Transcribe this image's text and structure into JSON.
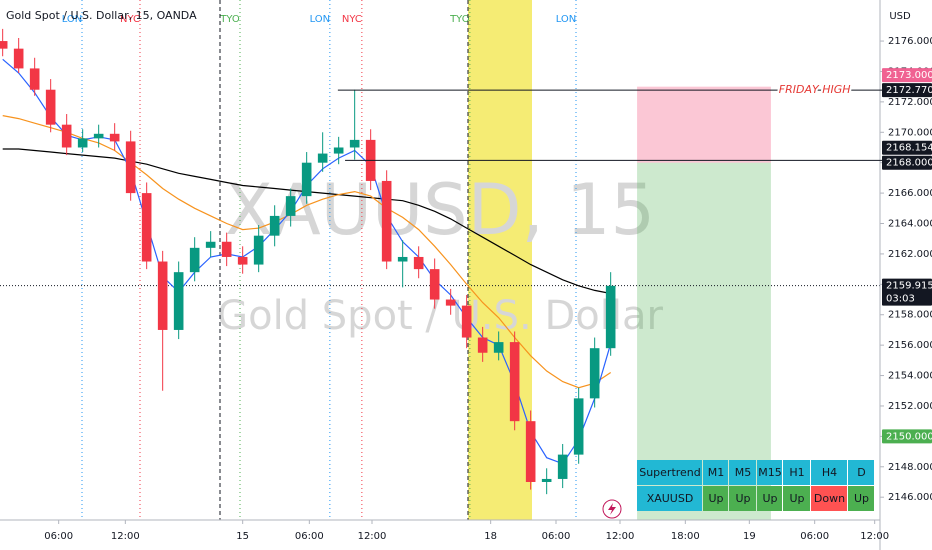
{
  "chart_data": {
    "type": "candlestick",
    "title": "Gold Spot / U.S. Dollar, 15, OANDA",
    "currency": "USD",
    "watermark": [
      "XAUUSD, 15",
      "Gold Spot / U.S. Dollar"
    ],
    "xlim": [
      0,
      330
    ],
    "ylim": [
      2144.5,
      2178.7
    ],
    "up_color": "#089981",
    "down_color": "#f23645",
    "yticks": [
      {
        "value": 2146,
        "label": "2146.000"
      },
      {
        "value": 2148,
        "label": "2148.000"
      },
      {
        "value": 2150,
        "label": "2150.000"
      },
      {
        "value": 2152,
        "label": "2152.000"
      },
      {
        "value": 2154,
        "label": "2154.000"
      },
      {
        "value": 2156,
        "label": "2156.000"
      },
      {
        "value": 2158,
        "label": "2158.000"
      },
      {
        "value": 2160,
        "label": "2160.000"
      },
      {
        "value": 2162,
        "label": "2162.000"
      },
      {
        "value": 2164,
        "label": "2164.000"
      },
      {
        "value": 2166,
        "label": "2166.000"
      },
      {
        "value": 2168,
        "label": "2168.000"
      },
      {
        "value": 2170,
        "label": "2170.000"
      },
      {
        "value": 2172,
        "label": "2172.000"
      },
      {
        "value": 2174,
        "label": "2174.000"
      },
      {
        "value": 2176,
        "label": "2176.000"
      }
    ],
    "xticks": [
      {
        "value": 22,
        "label": "06:00"
      },
      {
        "value": 47,
        "label": "12:00"
      },
      {
        "value": 91,
        "label": "15"
      },
      {
        "value": 116,
        "label": "06:00"
      },
      {
        "value": 139.5,
        "label": "12:00"
      },
      {
        "value": 184,
        "label": "18"
      },
      {
        "value": 208.5,
        "label": "06:00"
      },
      {
        "value": 232.5,
        "label": "12:00"
      },
      {
        "value": 257,
        "label": "18:00"
      },
      {
        "value": 281,
        "label": "19"
      },
      {
        "value": 305.5,
        "label": "06:00"
      },
      {
        "value": 328,
        "label": "12:00"
      }
    ],
    "x": [
      1,
      7,
      13,
      19,
      25,
      31,
      37,
      43,
      49,
      55,
      61,
      67,
      73,
      79,
      85,
      91,
      97,
      103,
      109,
      115,
      121,
      127,
      133,
      139,
      145,
      151,
      157,
      163,
      169,
      175,
      181,
      187,
      193,
      199,
      205,
      211,
      217,
      223,
      229
    ],
    "open": [
      2176.0,
      2175.5,
      2174.2,
      2172.8,
      2170.5,
      2169.0,
      2169.6,
      2169.9,
      2169.4,
      2166.0,
      2161.5,
      2157.0,
      2160.8,
      2162.4,
      2162.8,
      2161.8,
      2161.3,
      2163.2,
      2164.5,
      2165.8,
      2168.0,
      2168.6,
      2169.0,
      2169.5,
      2166.8,
      2161.5,
      2161.8,
      2161.0,
      2159.0,
      2158.6,
      2156.5,
      2155.5,
      2156.2,
      2151.0,
      2147.0,
      2147.2,
      2148.8,
      2152.5,
      2155.8
    ],
    "high": [
      2176.8,
      2176.2,
      2174.9,
      2173.5,
      2171.2,
      2170.2,
      2170.5,
      2170.6,
      2170.1,
      2166.7,
      2162.2,
      2161.5,
      2163.1,
      2163.5,
      2163.4,
      2162.5,
      2163.9,
      2165.2,
      2166.3,
      2168.7,
      2170.0,
      2169.7,
      2172.8,
      2170.2,
      2167.5,
      2162.9,
      2162.5,
      2161.7,
      2159.7,
      2159.3,
      2157.2,
      2156.9,
      2156.9,
      2151.7,
      2147.9,
      2149.5,
      2153.2,
      2156.5,
      2160.8
    ],
    "low": [
      2175.0,
      2173.9,
      2172.4,
      2170.0,
      2168.5,
      2168.7,
      2169.0,
      2168.8,
      2165.5,
      2161.0,
      2153.0,
      2156.4,
      2160.2,
      2161.8,
      2161.2,
      2160.7,
      2160.8,
      2162.5,
      2163.8,
      2165.3,
      2167.4,
      2167.9,
      2168.2,
      2166.2,
      2161.0,
      2159.8,
      2160.4,
      2158.4,
      2158.0,
      2155.8,
      2154.9,
      2155.0,
      2150.4,
      2146.5,
      2146.2,
      2146.6,
      2148.2,
      2151.9,
      2155.3
    ],
    "close": [
      2175.5,
      2174.2,
      2172.8,
      2170.5,
      2169.0,
      2169.6,
      2169.9,
      2169.4,
      2166.0,
      2161.5,
      2157.0,
      2160.8,
      2162.4,
      2162.8,
      2161.8,
      2161.3,
      2163.2,
      2164.5,
      2165.8,
      2168.0,
      2168.6,
      2169.0,
      2169.5,
      2166.8,
      2161.5,
      2161.8,
      2161.0,
      2159.0,
      2158.6,
      2156.5,
      2155.5,
      2156.2,
      2151.0,
      2147.0,
      2147.2,
      2148.8,
      2152.5,
      2155.8,
      2159.9
    ],
    "lines": [
      {
        "color": "#000000",
        "values": [
          2168.9,
          2168.9,
          2168.8,
          2168.7,
          2168.6,
          2168.5,
          2168.4,
          2168.3,
          2168.1,
          2167.9,
          2167.6,
          2167.3,
          2167.1,
          2166.9,
          2166.7,
          2166.5,
          2166.4,
          2166.3,
          2166.2,
          2166.1,
          2166.0,
          2165.9,
          2165.8,
          2165.7,
          2165.6,
          2165.5,
          2165.2,
          2164.8,
          2164.3,
          2163.7,
          2163.1,
          2162.5,
          2161.9,
          2161.3,
          2160.8,
          2160.3,
          2159.9,
          2159.6,
          2159.4
        ]
      },
      {
        "color": "#f7931e",
        "values": [
          2171.1,
          2170.9,
          2170.6,
          2170.3,
          2170.0,
          2169.6,
          2169.3,
          2168.8,
          2168.0,
          2167.2,
          2166.3,
          2165.6,
          2165.0,
          2164.5,
          2164.0,
          2163.6,
          2163.7,
          2164.1,
          2164.6,
          2165.2,
          2165.6,
          2165.9,
          2166.1,
          2165.8,
          2165.0,
          2164.4,
          2163.6,
          2162.5,
          2161.3,
          2160.0,
          2158.8,
          2157.8,
          2156.5,
          2155.3,
          2154.3,
          2153.6,
          2153.2,
          2153.5,
          2154.2
        ]
      },
      {
        "color": "#2962ff",
        "values": [
          2174.8,
          2173.9,
          2172.6,
          2171.0,
          2169.8,
          2169.5,
          2169.7,
          2169.5,
          2167.5,
          2164.0,
          2160.5,
          2159.5,
          2160.8,
          2161.8,
          2162.0,
          2161.8,
          2162.5,
          2163.6,
          2164.8,
          2166.5,
          2167.6,
          2168.3,
          2168.8,
          2167.8,
          2164.5,
          2162.8,
          2161.8,
          2160.3,
          2159.3,
          2157.8,
          2156.5,
          2156.0,
          2153.5,
          2150.3,
          2148.6,
          2148.2,
          2149.8,
          2152.5,
          2156.1
        ]
      }
    ],
    "sessions": [
      {
        "label": "LON",
        "x": 30.75,
        "color": "#2196f3"
      },
      {
        "label": "NYC",
        "x": 52.5,
        "color": "#f23645"
      },
      {
        "label": "TYO",
        "x": 90,
        "color": "#4caf50"
      },
      {
        "label": "LON",
        "x": 123.7,
        "color": "#2196f3"
      },
      {
        "label": "NYC",
        "x": 135.7,
        "color": "#f23645"
      },
      {
        "label": "TYO",
        "x": 176.2,
        "color": "#4caf50"
      },
      {
        "label": "LON",
        "x": 216,
        "color": "#2196f3"
      }
    ],
    "day_breaks": [
      82.5,
      175.5
    ],
    "highlight": {
      "x": [
        175.5,
        199.5
      ],
      "color": "#f5ec74"
    },
    "hlines": [
      {
        "value": 2172.77,
        "x_start": 126.7,
        "label": "FRIDAY HIGH",
        "label_x": 305.5,
        "label_color": "#e53935"
      },
      {
        "value": 2168.154,
        "x_start": 129.4
      }
    ],
    "last_price": 2159.915,
    "position": {
      "x": [
        238.9,
        289.1
      ],
      "stop": 2173,
      "entry": 2168
    },
    "price_tags": [
      {
        "value": 2173,
        "label": "2173.000",
        "color": "#f06292"
      },
      {
        "value": 2172.77,
        "label": "2172.770",
        "color": "#131722"
      },
      {
        "value": 2168.154,
        "label": "2168.154",
        "color": "#131722"
      },
      {
        "value": 2168,
        "label": "2168.000",
        "color": "#131722"
      },
      {
        "value": 2159.915,
        "label": "2159.915",
        "color": "#131722",
        "countdown": "03:03"
      },
      {
        "value": 2150,
        "label": "2150.000",
        "color": "#4caf50"
      }
    ],
    "indicator_table": {
      "rows": [
        [
          "Supertrend",
          "M1",
          "M5",
          "M15",
          "H1",
          "H4",
          "D"
        ],
        [
          "XAUUSD",
          "Up",
          "Up",
          "Up",
          "Up",
          "Down",
          "Up"
        ]
      ],
      "colors": [
        [
          "#22b8d4",
          "#22b8d4",
          "#22b8d4",
          "#22b8d4",
          "#22b8d4",
          "#22b8d4",
          "#22b8d4"
        ],
        [
          "#22b8d4",
          "#4caf50",
          "#4caf50",
          "#4caf50",
          "#4caf50",
          "#ff5252",
          "#4caf50"
        ]
      ]
    }
  }
}
